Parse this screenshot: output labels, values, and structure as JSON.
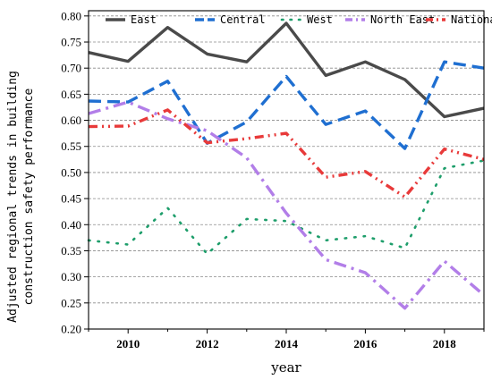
{
  "chart_data": {
    "type": "line",
    "xlabel": "year",
    "ylabel_lines": [
      "Adjusted regional trends in building",
      "construction safety performance"
    ],
    "xlim": [
      2009,
      2019
    ],
    "ylim": [
      0.2,
      0.81
    ],
    "x_ticks": [
      2010,
      2012,
      2014,
      2016,
      2018
    ],
    "y_ticks": [
      0.2,
      0.25,
      0.3,
      0.35,
      0.4,
      0.45,
      0.5,
      0.55,
      0.6,
      0.65,
      0.7,
      0.75,
      0.8
    ],
    "y_tick_labels": [
      "0.20",
      "0.25",
      "0.30",
      "0.35",
      "0.40",
      "0.45",
      "0.50",
      "0.55",
      "0.60",
      "0.65",
      "0.70",
      "0.75",
      "0.80"
    ],
    "grid": "horizontal dashed",
    "legend_position": "top",
    "x": [
      2009,
      2010,
      2011,
      2012,
      2013,
      2014,
      2015,
      2016,
      2017,
      2018,
      2019
    ],
    "series": [
      {
        "name": "East",
        "color": "#4a4a4a",
        "style": "solid",
        "values": [
          0.73,
          0.713,
          0.778,
          0.727,
          0.712,
          0.786,
          0.686,
          0.712,
          0.678,
          0.607,
          0.623
        ]
      },
      {
        "name": "Central",
        "color": "#1f6fd1",
        "style": "dash",
        "values": [
          0.637,
          0.635,
          0.675,
          0.556,
          0.597,
          0.684,
          0.592,
          0.618,
          0.546,
          0.712,
          0.7
        ]
      },
      {
        "name": "West",
        "color": "#1e9e6b",
        "style": "dot",
        "values": [
          0.37,
          0.362,
          0.432,
          0.344,
          0.411,
          0.407,
          0.37,
          0.378,
          0.355,
          0.508,
          0.523
        ]
      },
      {
        "name": "North East",
        "color": "#b27ee8",
        "style": "dashdot",
        "values": [
          0.613,
          0.635,
          0.603,
          0.58,
          0.528,
          0.422,
          0.333,
          0.308,
          0.24,
          0.33,
          0.265
        ]
      },
      {
        "name": "National",
        "color": "#e83a3a",
        "style": "dashdotdot",
        "values": [
          0.588,
          0.589,
          0.62,
          0.557,
          0.565,
          0.575,
          0.491,
          0.502,
          0.453,
          0.545,
          0.525
        ]
      }
    ]
  }
}
